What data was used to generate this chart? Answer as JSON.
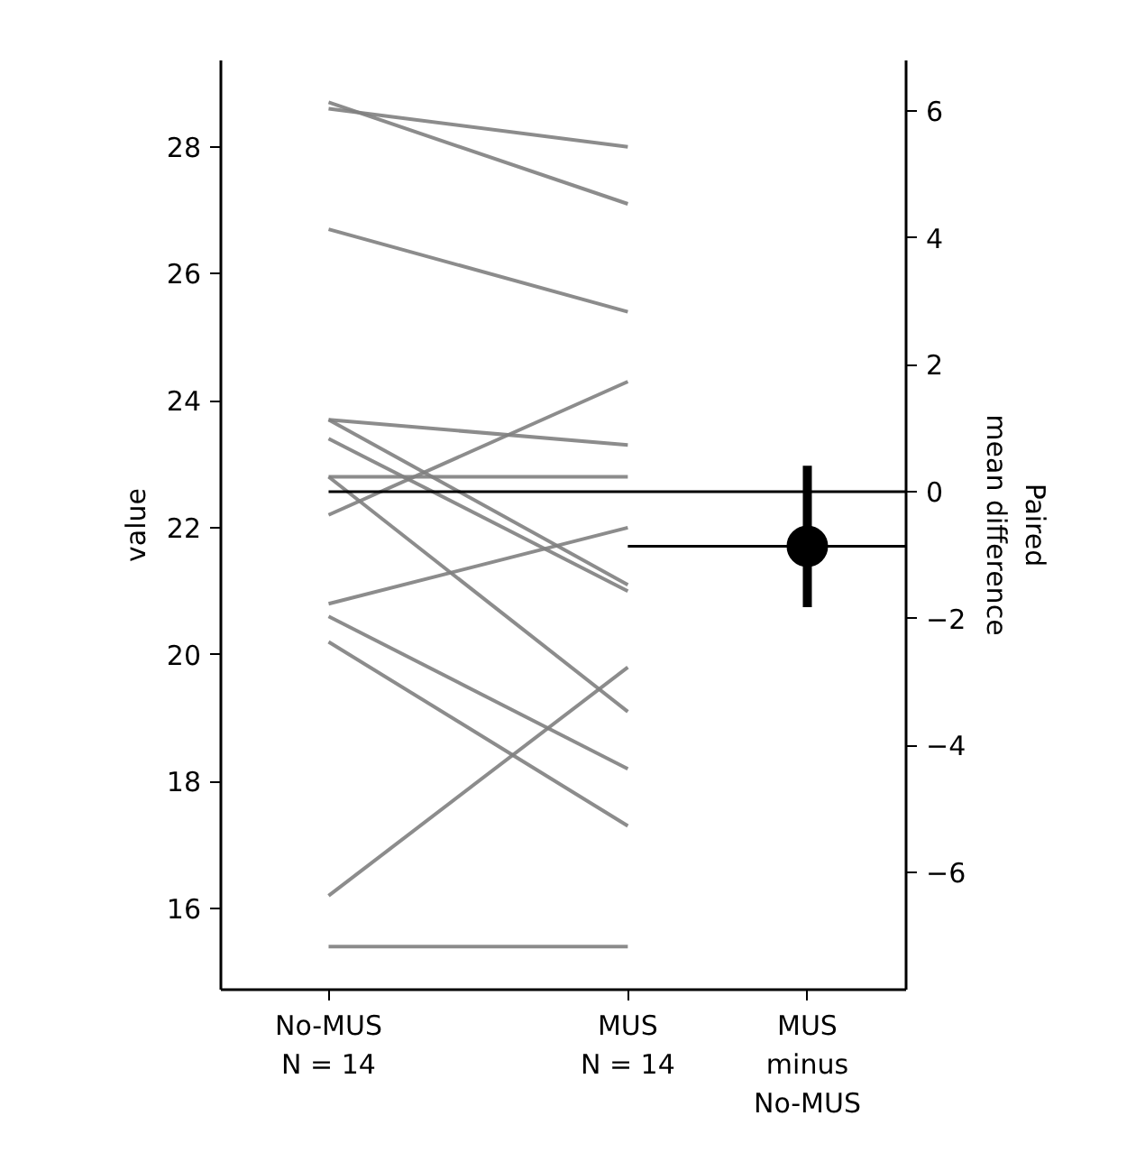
{
  "chart_data": {
    "type": "line",
    "ylabel": "value",
    "y2label": "Paired\nmean difference",
    "categories": [
      "No-MUS\nN = 14",
      "MUS\nN = 14",
      "MUS\nminus\nNo-MUS"
    ],
    "ylim": [
      14.72,
      29.36
    ],
    "yticks": [
      16,
      18,
      20,
      22,
      24,
      26,
      28
    ],
    "y2lim": [
      -7.85,
      6.8
    ],
    "y2ticks": [
      {
        "value": -6,
        "label": "−6"
      },
      {
        "value": -4,
        "label": "−4"
      },
      {
        "value": -2,
        "label": "−2"
      },
      0,
      2,
      4,
      6
    ],
    "grid": false,
    "marker": "none",
    "series": [
      {
        "color": "#808080",
        "values": [
          28.7,
          27.1,
          null
        ]
      },
      {
        "color": "#808080",
        "values": [
          28.6,
          28.0,
          null
        ]
      },
      {
        "color": "#808080",
        "values": [
          26.7,
          25.4,
          null
        ]
      },
      {
        "color": "#808080",
        "values": [
          23.7,
          23.3,
          null
        ]
      },
      {
        "color": "#808080",
        "values": [
          23.7,
          21.1,
          null
        ]
      },
      {
        "color": "#808080",
        "values": [
          23.4,
          21.0,
          null
        ]
      },
      {
        "color": "#808080",
        "values": [
          22.8,
          22.8,
          null
        ]
      },
      {
        "color": "#808080",
        "values": [
          22.8,
          19.1,
          null
        ]
      },
      {
        "color": "#808080",
        "values": [
          22.2,
          24.3,
          null
        ]
      },
      {
        "color": "#808080",
        "values": [
          20.8,
          22.0,
          null
        ]
      },
      {
        "color": "#808080",
        "values": [
          20.6,
          18.2,
          null
        ]
      },
      {
        "color": "#808080",
        "values": [
          20.2,
          17.3,
          null
        ]
      },
      {
        "color": "#808080",
        "values": [
          16.2,
          19.8,
          null
        ]
      },
      {
        "color": "#808080",
        "values": [
          15.4,
          15.4,
          null
        ]
      },
      {
        "type": "scatter",
        "axis": "y2",
        "marker": "circle",
        "color": "#000000",
        "values": [
          null,
          null,
          -0.86
        ],
        "errors": [
          null,
          null,
          [
            -1.82,
            0.41
          ]
        ]
      }
    ],
    "ref_lines": [
      {
        "axis": "y2",
        "value": 0,
        "color": "#000000"
      },
      {
        "axis": "y2",
        "value": -0.86,
        "color": "#000000"
      }
    ]
  }
}
